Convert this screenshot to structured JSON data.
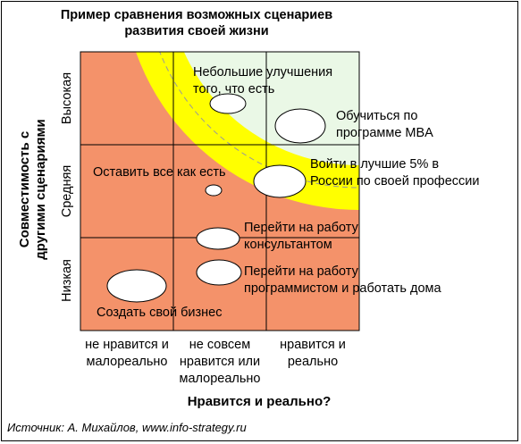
{
  "title": {
    "line1": "Пример сравнения возможных сценариев",
    "line2": "развития своей жизни"
  },
  "x_axis": {
    "title": "Нравится и реально?",
    "categories": [
      [
        "не нравится и",
        "малореально"
      ],
      [
        "не совсем",
        "нравится или",
        "малореально"
      ],
      [
        "нравится и",
        "реально"
      ]
    ]
  },
  "y_axis": {
    "title_line1": "Совместимость с",
    "title_line2": "другими сценариями",
    "categories": [
      "Высокая",
      "Средняя",
      "Низкая"
    ]
  },
  "scenarios": [
    {
      "lines": [
        "Небольшие улучшения",
        "того, что есть"
      ]
    },
    {
      "lines": [
        "Обучиться по",
        "программе MBA"
      ]
    },
    {
      "lines": [
        "Оставить все как есть"
      ]
    },
    {
      "lines": [
        "Войти в лучшие 5% в",
        "России по своей профессии"
      ]
    },
    {
      "lines": [
        "Перейти на работу",
        "консультантом"
      ]
    },
    {
      "lines": [
        "Перейти на работу",
        "программистом и работать дома"
      ]
    },
    {
      "lines": [
        "Создать свой бизнес"
      ]
    }
  ],
  "source": "Источник: А. Михайлов, www.info-strategy.ru",
  "colors": {
    "low_zone": "#f4926a",
    "mid_zone": "#ffff00",
    "high_zone": "#eaf8e6",
    "bubble": "#ffffff",
    "grid": "#000000"
  }
}
